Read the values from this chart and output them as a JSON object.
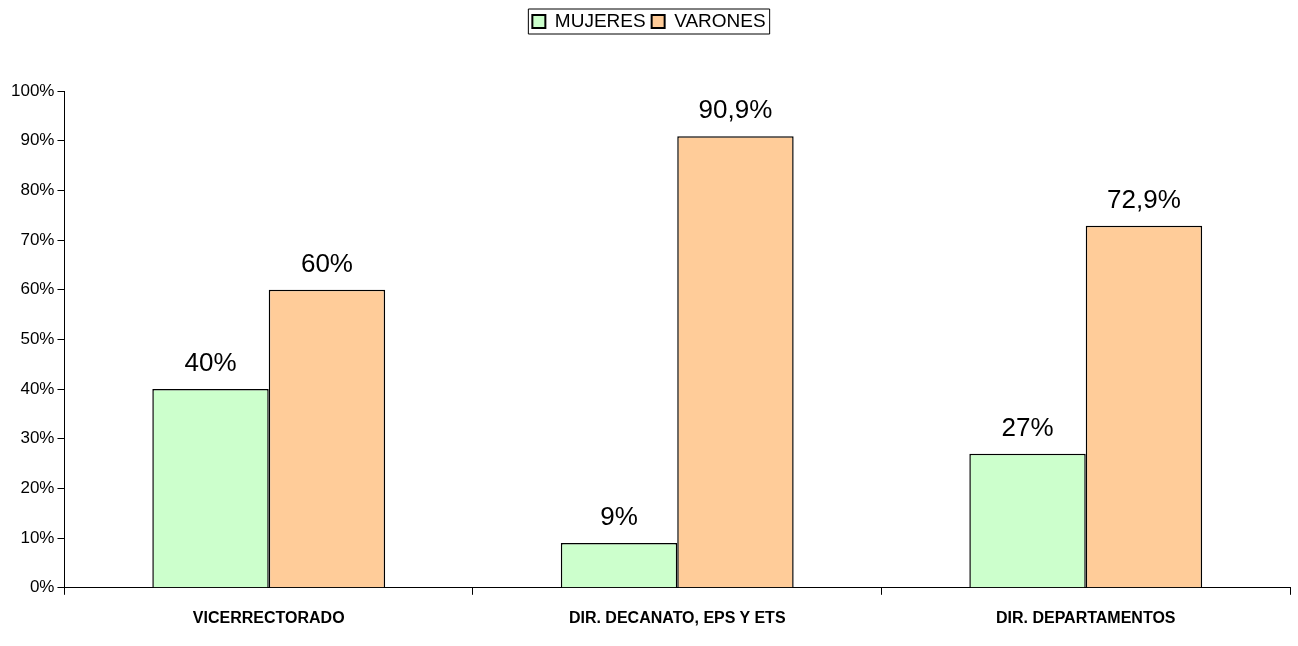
{
  "chart_data": {
    "type": "bar",
    "categories": [
      "VICERRECTORADO",
      "DIR. DECANATO, EPS Y ETS",
      "DIR. DEPARTAMENTOS"
    ],
    "series": [
      {
        "name": "MUJERES",
        "color": "#ccffcc",
        "values": [
          40,
          9,
          27
        ],
        "value_labels": [
          "40%",
          "9%",
          "27%"
        ]
      },
      {
        "name": "VARONES",
        "color": "#ffcc99",
        "values": [
          60,
          90.9,
          72.9
        ],
        "value_labels": [
          "60%",
          "90,9%",
          "72,9%"
        ]
      }
    ],
    "ylim": [
      0,
      100
    ],
    "yticks": [
      {
        "value": 0,
        "label": "0%"
      },
      {
        "value": 10,
        "label": "10%"
      },
      {
        "value": 20,
        "label": "20%"
      },
      {
        "value": 30,
        "label": "30%"
      },
      {
        "value": 40,
        "label": "40%"
      },
      {
        "value": 50,
        "label": "50%"
      },
      {
        "value": 60,
        "label": "60%"
      },
      {
        "value": 70,
        "label": "70%"
      },
      {
        "value": 80,
        "label": "80%"
      },
      {
        "value": 90,
        "label": "90%"
      },
      {
        "value": 100,
        "label": "100%"
      }
    ],
    "grid": false,
    "legend": "top"
  }
}
